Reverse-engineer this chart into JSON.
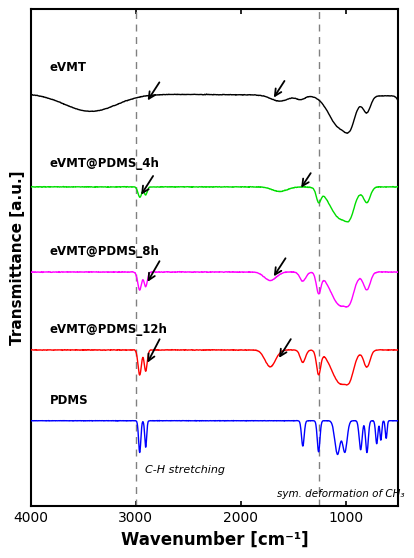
{
  "xlabel": "Wavenumber [cm⁻¹]",
  "ylabel": "Transmittance [a.u.]",
  "xlim": [
    4000,
    500
  ],
  "ylim": [
    -1.2,
    5.8
  ],
  "dashed_lines": [
    3000,
    1260
  ],
  "labels": [
    "eVMT",
    "eVMT@PDMS_4h",
    "eVMT@PDMS_8h",
    "eVMT@PDMS_12h",
    "PDMS"
  ],
  "colors": [
    "black",
    "#00dd00",
    "#ff00ff",
    "red",
    "blue"
  ],
  "offsets": [
    4.6,
    3.3,
    2.1,
    1.0,
    0.0
  ],
  "annotation_ch": "C-H stretching",
  "annotation_sym": "sym. deformation of CH₃",
  "background_color": "white",
  "xticks": [
    4000,
    3000,
    2000,
    1000
  ]
}
